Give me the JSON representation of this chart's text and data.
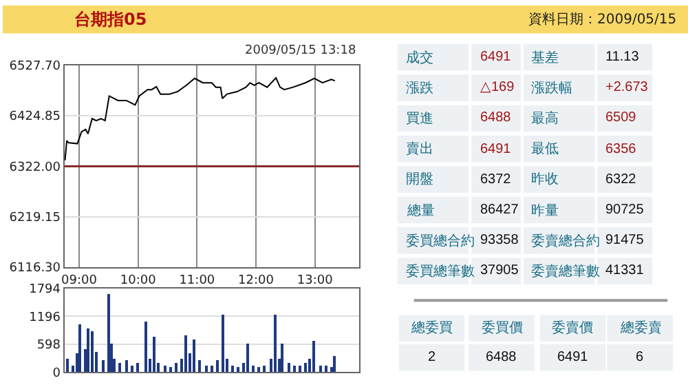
{
  "chart_data": [
    {
      "type": "line",
      "annotations": [
        "2009/05/15 13:18"
      ],
      "x": [
        8.76,
        8.79,
        8.82,
        8.97,
        9.04,
        9.11,
        9.15,
        9.22,
        9.29,
        9.37,
        9.44,
        9.51,
        9.66,
        9.8,
        9.95,
        10.02,
        10.16,
        10.23,
        10.31,
        10.38,
        10.53,
        10.67,
        10.82,
        10.96,
        11.1,
        11.25,
        11.32,
        11.4,
        11.43,
        11.51,
        11.68,
        11.83,
        11.9,
        11.97,
        12.05,
        12.19,
        12.34,
        12.41,
        12.48,
        12.63,
        12.84,
        12.99,
        13.13,
        13.28,
        13.34
      ],
      "series": [
        {
          "color": "#000000",
          "values": [
            6334,
            6374,
            6370,
            6368,
            6392,
            6397,
            6388,
            6419,
            6415,
            6419,
            6415,
            6465,
            6456,
            6456,
            6447,
            6465,
            6478,
            6478,
            6484,
            6469,
            6469,
            6474,
            6487,
            6501,
            6492,
            6492,
            6483,
            6483,
            6460,
            6469,
            6474,
            6483,
            6492,
            6487,
            6492,
            6483,
            6502,
            6483,
            6478,
            6483,
            6492,
            6501,
            6492,
            6499,
            6496
          ]
        }
      ],
      "xlim": [
        8.75,
        13.75
      ],
      "xticks": [
        {
          "value": 9,
          "label": "09:00"
        },
        {
          "value": 10,
          "label": "10:00"
        },
        {
          "value": 11,
          "label": "11:00"
        },
        {
          "value": 12,
          "label": "12:00"
        },
        {
          "value": 13,
          "label": "13:00"
        }
      ],
      "ylim": [
        6116.3,
        6527.7
      ],
      "yticks": [
        {
          "value": 6116.3,
          "label": "6116.30"
        },
        {
          "value": 6219.15,
          "label": "6219.15"
        },
        {
          "value": 6322,
          "label": "6322.00"
        },
        {
          "value": 6424.85,
          "label": "6424.85"
        },
        {
          "value": 6527.7,
          "label": "6527.70"
        }
      ],
      "ref_lines": [
        {
          "axis": "y",
          "value": 6322,
          "color": "#8b2a2a"
        }
      ],
      "grid": true,
      "marker": "none",
      "line_style": "solid"
    },
    {
      "type": "bar",
      "x": [
        8.8,
        8.9,
        8.97,
        9.02,
        9.1,
        9.15,
        9.22,
        9.3,
        9.4,
        9.51,
        9.55,
        9.6,
        9.7,
        9.8,
        9.9,
        10.0,
        10.13,
        10.2,
        10.27,
        10.35,
        10.45,
        10.55,
        10.65,
        10.75,
        10.82,
        10.88,
        10.95,
        11.05,
        11.15,
        11.25,
        11.35,
        11.43,
        11.5,
        11.6,
        11.7,
        11.8,
        11.87,
        11.95,
        12.05,
        12.15,
        12.25,
        12.33,
        12.4,
        12.45,
        12.55,
        12.65,
        12.75,
        12.85,
        12.92,
        12.99,
        13.1,
        13.2,
        13.28,
        13.34
      ],
      "series": [
        {
          "color": "#1f3a80",
          "values": [
            300,
            150,
            400,
            1030,
            500,
            930,
            880,
            450,
            250,
            1680,
            600,
            300,
            200,
            250,
            150,
            200,
            1100,
            300,
            760,
            200,
            150,
            120,
            200,
            300,
            790,
            400,
            710,
            250,
            150,
            150,
            250,
            1220,
            300,
            150,
            120,
            200,
            620,
            150,
            120,
            150,
            300,
            1240,
            300,
            620,
            200,
            150,
            150,
            200,
            300,
            660,
            150,
            150,
            120,
            340
          ]
        }
      ],
      "xlim": [
        8.75,
        13.75
      ],
      "ylim": [
        0,
        1794
      ],
      "yticks": [
        0,
        598,
        1196,
        1794
      ],
      "tick_labels": "y",
      "grid": true
    },
    {
      "type": "other",
      "title": "台期指05",
      "subtitle": "資料日期：2009/05/15",
      "annotations": [
        "成交",
        "6491",
        "基差",
        "11.13",
        "漲跌",
        "△169",
        "漲跌幅",
        "+2.673",
        "買進",
        "6488",
        "最高",
        "6509",
        "賣出",
        "6491",
        "最低",
        "6356",
        "開盤",
        "6372",
        "昨收",
        "6322",
        "總量",
        "86427",
        "昨量",
        "90725",
        "委買總合約",
        "93358",
        "委賣總合約",
        "91475",
        "委買總筆數",
        "37905",
        "委賣總筆數",
        "41331",
        "總委買",
        "委買價",
        "委賣價",
        "總委賣",
        "2",
        "6488",
        "6491",
        "6"
      ]
    }
  ]
}
